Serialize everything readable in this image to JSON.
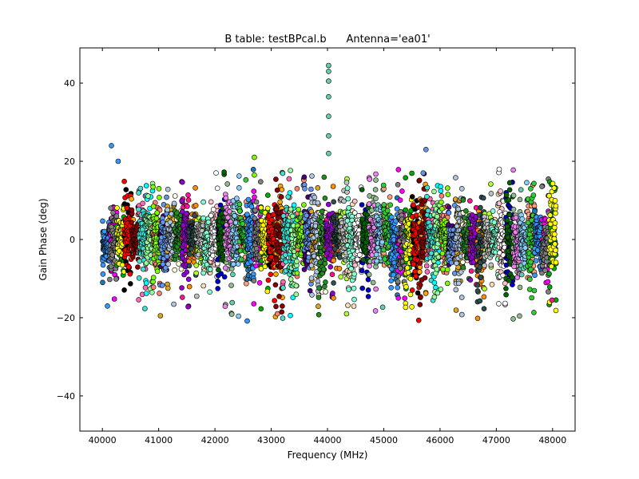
{
  "chart_data": {
    "type": "scatter",
    "title": "B table: testBPcal.b      Antenna='ea01'",
    "xlabel": "Frequency (MHz)",
    "ylabel": "Gain Phase (deg)",
    "xlim": [
      39600,
      48400
    ],
    "ylim": [
      -49,
      49
    ],
    "xticks": [
      40000,
      41000,
      42000,
      43000,
      44000,
      45000,
      46000,
      47000,
      48000
    ],
    "yticks": [
      -40,
      -20,
      0,
      20,
      40
    ],
    "ytick_labels": [
      "−40",
      "−20",
      "0",
      "20",
      "40"
    ],
    "grid": false,
    "legend": "none",
    "freq_range": [
      40000,
      48000
    ],
    "spectral_window_width_mhz": 128,
    "series_colors": [
      "#1f77b4",
      "#3399ff",
      "#ff00ff",
      "#808080",
      "#00aa00",
      "#ffff00",
      "#000000",
      "#ff0000",
      "#ffa500",
      "#8b0000",
      "#ff69b4",
      "#40e0d0",
      "#00ffff",
      "#98fb98",
      "#fa8072",
      "#7cfc00",
      "#4b0082",
      "#6495ed",
      "#daa520",
      "#b0c4de",
      "#ffffe0",
      "#228b22",
      "#ff1493",
      "#9400d3",
      "#ff8c00",
      "#2f4f4f",
      "#adff2f",
      "#c0c0c0",
      "#f5deb3",
      "#7fffd4",
      "#ffc0cb",
      "#ffffff",
      "#0000cd",
      "#006400",
      "#8fbc8f",
      "#ee82ee",
      "#66cdaa",
      "#87cefa",
      "#ffa07a",
      "#32cd32"
    ],
    "notable_points": [
      {
        "x": 40160,
        "y": 24,
        "color": "#3399ff"
      },
      {
        "x": 40280,
        "y": 20,
        "color": "#3399ff"
      },
      {
        "x": 42020,
        "y": 17,
        "color": "#ffffff"
      },
      {
        "x": 42700,
        "y": 21,
        "color": "#7cfc00"
      },
      {
        "x": 42700,
        "y": 16.5,
        "color": "#7cfc00"
      },
      {
        "x": 44020,
        "y": 44.5,
        "color": "#66cdaa"
      },
      {
        "x": 44020,
        "y": 43,
        "color": "#66cdaa"
      },
      {
        "x": 44020,
        "y": 40.5,
        "color": "#66cdaa"
      },
      {
        "x": 44020,
        "y": 36.5,
        "color": "#66cdaa"
      },
      {
        "x": 44020,
        "y": 31.5,
        "color": "#66cdaa"
      },
      {
        "x": 44020,
        "y": 26.5,
        "color": "#66cdaa"
      },
      {
        "x": 44020,
        "y": 22,
        "color": "#66cdaa"
      },
      {
        "x": 45750,
        "y": 23,
        "color": "#6495ed"
      },
      {
        "x": 45700,
        "y": 17,
        "color": "#6495ed"
      },
      {
        "x": 41030,
        "y": -19.5,
        "color": "#daa520"
      },
      {
        "x": 40090,
        "y": -17,
        "color": "#3399ff"
      },
      {
        "x": 43110,
        "y": -19,
        "color": "#fa8072"
      },
      {
        "x": 47990,
        "y": -15.5,
        "color": "#ff1493"
      }
    ]
  }
}
